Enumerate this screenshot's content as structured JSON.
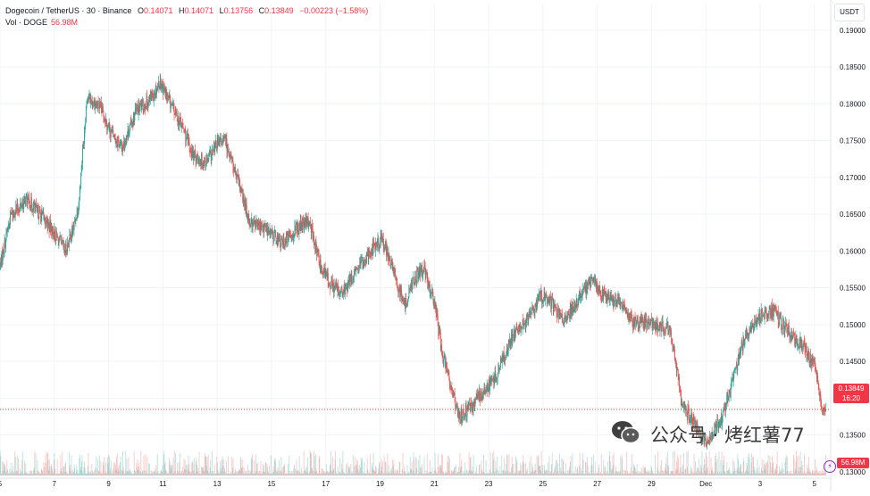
{
  "header": {
    "symbol": "Dogecoin / TetherUS · 30 · Binance",
    "open_label": "O",
    "open": "0.14071",
    "high_label": "H",
    "high": "0.14071",
    "low_label": "L",
    "low": "0.13756",
    "close_label": "C",
    "close": "0.13849",
    "change": "−0.00223 (−1.58%)",
    "volume_label": "Vol · DOGE",
    "volume": "56.98M"
  },
  "currency": "USDT",
  "last_price": {
    "price": "0.13849",
    "countdown": "16:20"
  },
  "volume_tag": "56.98M",
  "watermark": "公众号 · 烤红薯77",
  "colors": {
    "up": "#26a69a",
    "down": "#ef5350",
    "tag": "#f23645",
    "grid": "#f0f3fa",
    "axis_text": "#131722"
  },
  "chart_data": {
    "type": "candlestick",
    "series_unit": "USDT",
    "y_ticks": [
      "0.13000",
      "0.13500",
      "0.14000",
      "0.14500",
      "0.15000",
      "0.15500",
      "0.16000",
      "0.16500",
      "0.17000",
      "0.17500",
      "0.18000",
      "0.18500",
      "0.19000"
    ],
    "y_tick_values": [
      0.13,
      0.135,
      0.14,
      0.145,
      0.15,
      0.155,
      0.16,
      0.165,
      0.17,
      0.175,
      0.18,
      0.185,
      0.19
    ],
    "ylim": [
      0.1295,
      0.1912
    ],
    "x_ticks": [
      "5",
      "7",
      "9",
      "11",
      "13",
      "15",
      "17",
      "19",
      "21",
      "23",
      "25",
      "27",
      "29",
      "Dec",
      "3",
      "5"
    ],
    "x_tick_days": [
      5,
      7,
      9,
      11,
      13,
      15,
      17,
      19,
      21,
      23,
      25,
      27,
      29,
      31,
      33,
      35
    ],
    "xlim_days": [
      5.0,
      35.6
    ],
    "price_path_days": [
      5.0,
      5.4,
      6.0,
      6.7,
      7.4,
      7.7,
      7.9,
      8.2,
      8.7,
      9.1,
      9.5,
      10.0,
      10.5,
      10.9,
      11.4,
      11.7,
      12.1,
      12.6,
      13.0,
      13.3,
      13.8,
      14.2,
      14.8,
      15.4,
      15.9,
      16.4,
      16.8,
      17.1,
      17.6,
      17.9,
      18.3,
      18.6,
      19.1,
      19.6,
      19.9,
      20.2,
      20.6,
      21.0,
      21.3,
      21.6,
      21.9,
      22.3,
      22.7,
      23.2,
      23.6,
      24.0,
      24.5,
      24.9,
      25.3,
      25.8,
      26.3,
      26.8,
      27.3,
      27.8,
      28.3,
      28.8,
      29.2,
      29.6,
      29.8,
      30.1,
      30.5,
      31.0,
      31.3,
      31.6,
      31.9,
      32.3,
      32.7,
      33.1,
      33.5,
      33.9,
      34.3,
      34.6,
      35.0,
      35.3
    ],
    "price_path_values": [
      0.158,
      0.165,
      0.167,
      0.164,
      0.16,
      0.163,
      0.1665,
      0.181,
      0.1795,
      0.176,
      0.174,
      0.179,
      0.1805,
      0.183,
      0.179,
      0.177,
      0.173,
      0.172,
      0.1745,
      0.175,
      0.169,
      0.164,
      0.163,
      0.161,
      0.163,
      0.164,
      0.158,
      0.156,
      0.154,
      0.156,
      0.158,
      0.16,
      0.1615,
      0.156,
      0.1525,
      0.156,
      0.1575,
      0.153,
      0.146,
      0.142,
      0.1375,
      0.1385,
      0.1405,
      0.1425,
      0.146,
      0.149,
      0.151,
      0.154,
      0.153,
      0.1505,
      0.1535,
      0.156,
      0.154,
      0.153,
      0.1505,
      0.15,
      0.15,
      0.1495,
      0.147,
      0.1395,
      0.137,
      0.134,
      0.1355,
      0.1375,
      0.141,
      0.147,
      0.1495,
      0.1515,
      0.152,
      0.1495,
      0.148,
      0.147,
      0.1445,
      0.1385
    ],
    "last": 0.13849,
    "last_volume": "56.98M"
  }
}
